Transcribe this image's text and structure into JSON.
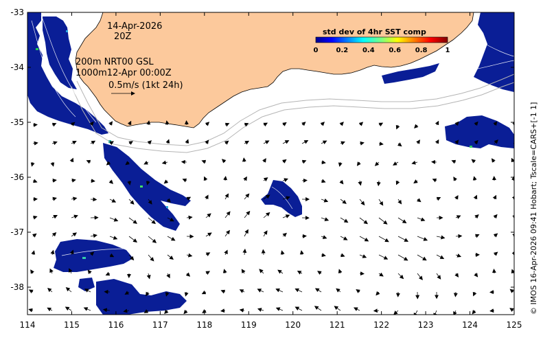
{
  "map": {
    "date": "14-Apr-2026",
    "hour": "20Z",
    "contour_line1": "200m  NRT00 GSL",
    "contour_line2": "1000m12-Apr 00:00Z",
    "scale_label": "0.5m/s (1kt 24h)",
    "credit": "© IMOS 16-Apr-2026 09:41 Hobart; Tscale=CARS+[-1 1]",
    "axes": {
      "x_ticks": [
        "114",
        "115",
        "116",
        "117",
        "118",
        "119",
        "120",
        "121",
        "122",
        "123",
        "124",
        "125"
      ],
      "y_ticks": [
        "-33",
        "-34",
        "-35",
        "-36",
        "-37",
        "-38"
      ],
      "lon_range": [
        114,
        125
      ],
      "lat_range": [
        -38.5,
        -33
      ]
    },
    "colorbar": {
      "title": "std dev of 4hr SST comp",
      "ticks": [
        "0",
        "0.2",
        "0.4",
        "0.6",
        "0.8",
        "1"
      ],
      "range": [
        0,
        1
      ]
    },
    "colors": {
      "land": "#fcc99c",
      "data_patch": "#0a1e96",
      "ocean": "#ffffff"
    }
  }
}
